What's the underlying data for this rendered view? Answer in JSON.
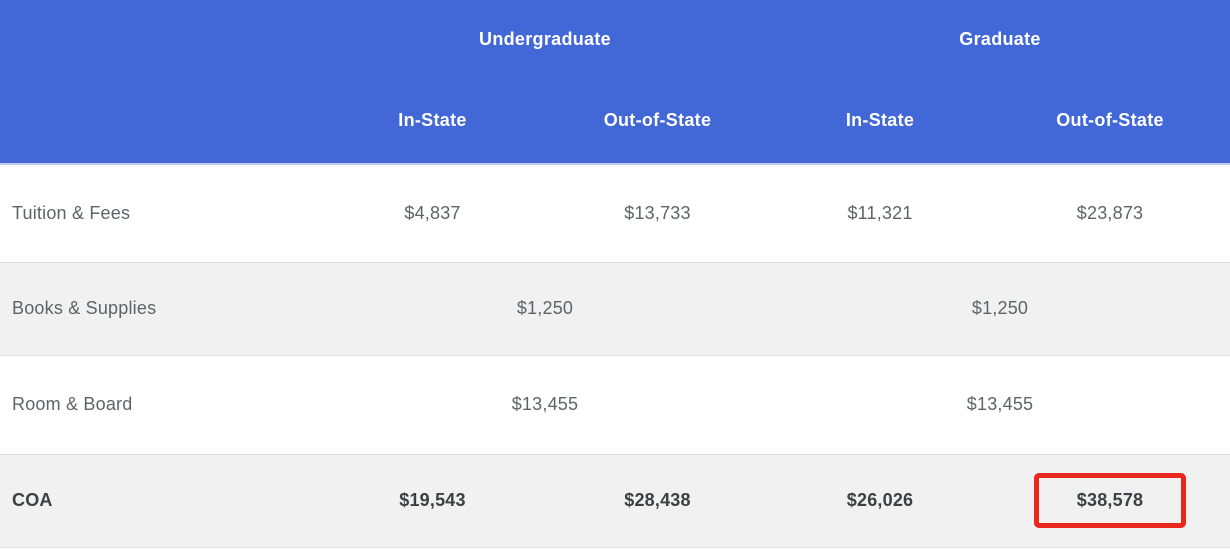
{
  "colors": {
    "header_bg": "#4267d6",
    "header_text": "#ffffff",
    "body_text": "#5f6368",
    "emphasis_text": "#3c4043",
    "alt_row_bg": "#f1f1f1",
    "row_border": "#dcdcdc",
    "highlight_border": "#e8271d"
  },
  "table": {
    "group_headers": {
      "undergraduate": "Undergraduate",
      "graduate": "Graduate"
    },
    "column_headers": {
      "ug_in_state": "In-State",
      "ug_out_of_state": "Out-of-State",
      "gr_in_state": "In-State",
      "gr_out_of_state": "Out-of-State"
    },
    "rows": {
      "tuition": {
        "label": "Tuition & Fees",
        "ug_in_state": "$4,837",
        "ug_out_of_state": "$13,733",
        "gr_in_state": "$11,321",
        "gr_out_of_state": "$23,873"
      },
      "books": {
        "label": "Books & Supplies",
        "undergraduate": "$1,250",
        "graduate": "$1,250"
      },
      "room": {
        "label": "Room & Board",
        "undergraduate": "$13,455",
        "graduate": "$13,455"
      },
      "coa": {
        "label": "COA",
        "ug_in_state": "$19,543",
        "ug_out_of_state": "$28,438",
        "gr_in_state": "$26,026",
        "gr_out_of_state": "$38,578"
      }
    }
  },
  "highlight": {
    "row": "COA",
    "column": "Graduate Out-of-State",
    "value": "$38,578"
  },
  "chart_data": {
    "type": "table",
    "column_groups": [
      {
        "label": "Undergraduate",
        "columns": [
          "In-State",
          "Out-of-State"
        ]
      },
      {
        "label": "Graduate",
        "columns": [
          "In-State",
          "Out-of-State"
        ]
      }
    ],
    "rows": [
      {
        "label": "Tuition & Fees",
        "values": {
          "undergraduate_in_state": 4837,
          "undergraduate_out_of_state": 13733,
          "graduate_in_state": 11321,
          "graduate_out_of_state": 23873
        }
      },
      {
        "label": "Books & Supplies",
        "values": {
          "undergraduate": 1250,
          "graduate": 1250
        }
      },
      {
        "label": "Room & Board",
        "values": {
          "undergraduate": 13455,
          "graduate": 13455
        }
      },
      {
        "label": "COA",
        "values": {
          "undergraduate_in_state": 19543,
          "undergraduate_out_of_state": 28438,
          "graduate_in_state": 26026,
          "graduate_out_of_state": 38578
        }
      }
    ],
    "annotation": "Red box highlights Graduate Out-of-State COA value $38,578"
  }
}
